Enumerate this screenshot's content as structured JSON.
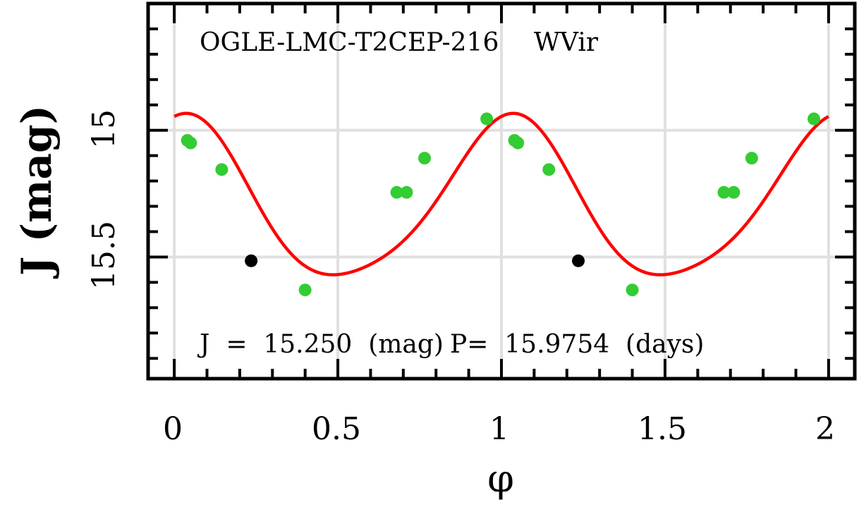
{
  "chart_data": {
    "type": "scatter",
    "title": "OGLE-LMC-T2CEP-216",
    "subtitle": "WVir",
    "xlabel": "φ",
    "ylabel": "J (mag)",
    "xlim": [
      -0.08,
      2.08
    ],
    "ylim": [
      15.98,
      14.5
    ],
    "y_inverted": true,
    "grid": true,
    "x_ticks": [
      0,
      0.5,
      1,
      1.5,
      2
    ],
    "x_tick_labels": [
      "0",
      "0.5",
      "1",
      "1.5",
      "2"
    ],
    "y_ticks": [
      15,
      15.5
    ],
    "y_tick_labels": [
      "15",
      "15.5"
    ],
    "annotation": {
      "mean_mag_label": "J  =  15.250  (mag)",
      "period_label": "P=  15.9754  (days)"
    },
    "colors": {
      "observations": "#33cc33",
      "outliers": "#000000",
      "fit": "#ff0000",
      "grid": "#e0e0e0"
    },
    "series": [
      {
        "name": "observations",
        "points": [
          {
            "x": 0.04,
            "y": 15.04
          },
          {
            "x": 0.05,
            "y": 15.05
          },
          {
            "x": 0.145,
            "y": 15.155
          },
          {
            "x": 0.4,
            "y": 15.63
          },
          {
            "x": 0.68,
            "y": 15.245
          },
          {
            "x": 0.71,
            "y": 15.245
          },
          {
            "x": 0.765,
            "y": 15.11
          },
          {
            "x": 0.955,
            "y": 14.955
          },
          {
            "x": 1.04,
            "y": 15.04
          },
          {
            "x": 1.05,
            "y": 15.05
          },
          {
            "x": 1.145,
            "y": 15.155
          },
          {
            "x": 1.4,
            "y": 15.63
          },
          {
            "x": 1.68,
            "y": 15.245
          },
          {
            "x": 1.71,
            "y": 15.245
          },
          {
            "x": 1.765,
            "y": 15.11
          },
          {
            "x": 1.955,
            "y": 14.955
          }
        ]
      },
      {
        "name": "outliers",
        "points": [
          {
            "x": 0.235,
            "y": 15.515
          },
          {
            "x": 1.235,
            "y": 15.515
          }
        ]
      },
      {
        "name": "fit",
        "model": "fourier",
        "mean": 15.29,
        "terms": [
          {
            "order": 1,
            "amplitude": 0.315,
            "phase_rad": 3.0
          },
          {
            "order": 2,
            "amplitude": 0.045,
            "phase_rad": 2.38
          }
        ],
        "x_range": [
          0,
          2
        ]
      }
    ]
  }
}
